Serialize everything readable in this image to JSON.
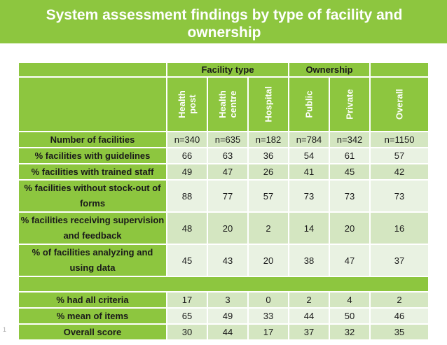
{
  "slide": {
    "title": "System assessment findings by type of facility and ownership",
    "number": "1"
  },
  "table": {
    "group_headers": {
      "facility_type": "Facility type",
      "ownership": "Ownership"
    },
    "column_headers": [
      "Health post",
      "Health centre",
      "Hospital",
      "Public",
      "Private",
      "Overall"
    ],
    "rows": [
      {
        "label": "Number of facilities",
        "values": [
          "n=340",
          "n=635",
          "n=182",
          "n=784",
          "n=342",
          "n=1150"
        ]
      },
      {
        "label": "% facilities with guidelines",
        "values": [
          "66",
          "63",
          "36",
          "54",
          "61",
          "57"
        ]
      },
      {
        "label": "% facilities with trained staff",
        "values": [
          "49",
          "47",
          "26",
          "41",
          "45",
          "42"
        ]
      },
      {
        "label": "% facilities without stock-out of forms",
        "values": [
          "88",
          "77",
          "57",
          "73",
          "73",
          "73"
        ]
      },
      {
        "label": "% facilities receiving supervision and feedback",
        "values": [
          "48",
          "20",
          "2",
          "14",
          "20",
          "16"
        ]
      },
      {
        "label": "% of facilities analyzing and using data",
        "values": [
          "45",
          "43",
          "20",
          "38",
          "47",
          "37"
        ]
      }
    ],
    "summary_rows": [
      {
        "label": "% had all criteria",
        "values": [
          "17",
          "3",
          "0",
          "2",
          "4",
          "2"
        ]
      },
      {
        "label": "% mean of items",
        "values": [
          "65",
          "49",
          "33",
          "44",
          "50",
          "46"
        ]
      },
      {
        "label": "Overall score",
        "values": [
          "30",
          "44",
          "17",
          "37",
          "32",
          "35"
        ]
      }
    ]
  },
  "colors": {
    "accent_green": "#8dc63f",
    "row_dark": "#d4e6c1",
    "row_light": "#e9f2e2"
  }
}
